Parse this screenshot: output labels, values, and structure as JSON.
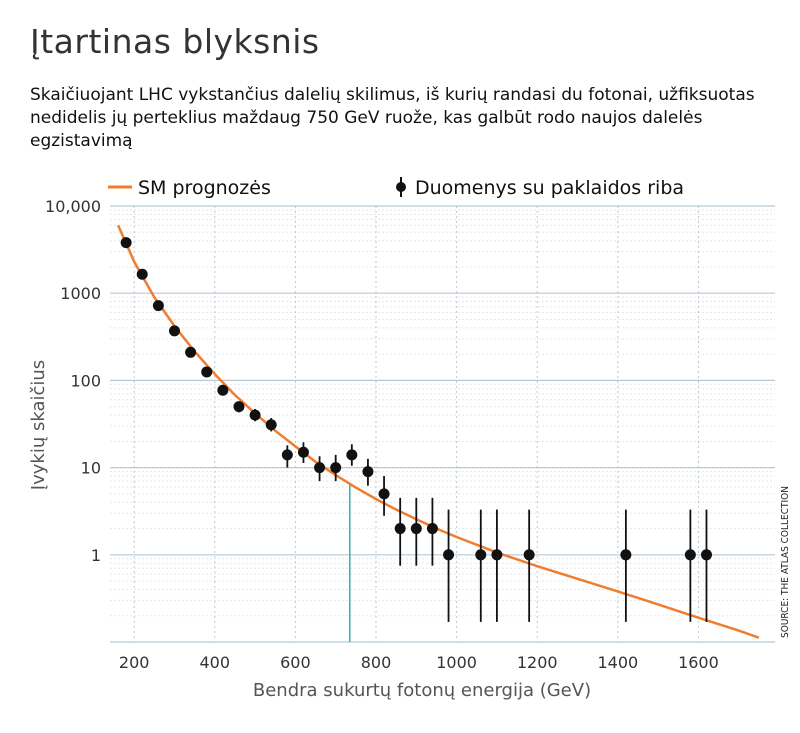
{
  "title": "Įtartinas blyksnis",
  "subtitle": "Skaičiuojant LHC vykstančius dalelių skilimus, iš kurių randasi du fotonai, užfiksuotas nedidelis jų perteklius maždaug 750 GeV ruože, kas galbūt rodo naujos dalelės egzistavimą",
  "source": "SOURCE: THE ATLAS COLLECTION",
  "colors": {
    "prediction": "#f07d2e",
    "data": "#111111",
    "highlight": "#33b1a8",
    "major_grid": "#b8c9d6",
    "minor_grid": "#e3e8ec"
  },
  "chart_data": {
    "type": "scatter",
    "xlabel": "Bendra sukurtų fotonų energija (GeV)",
    "ylabel": "Įvykių skaičius",
    "x_scale": "linear",
    "y_scale": "log",
    "xlim": [
      140,
      1790
    ],
    "ylim": [
      0.1,
      10000
    ],
    "x_ticks": [
      200,
      400,
      600,
      800,
      1000,
      1200,
      1400,
      1600
    ],
    "x_tick_labels": [
      "200",
      "400",
      "600",
      "800",
      "1000",
      "1200",
      "1400",
      "1600"
    ],
    "y_ticks": [
      1,
      10,
      100,
      1000,
      10000
    ],
    "y_tick_labels": [
      "1",
      "10",
      "100",
      "1000",
      "10,000"
    ],
    "grid": true,
    "legend_position": "top",
    "highlight_x": 735,
    "series": [
      {
        "name": "SM prognozės",
        "kind": "line",
        "x": [
          160,
          200,
          250,
          300,
          350,
          400,
          450,
          500,
          550,
          600,
          650,
          700,
          750,
          800,
          850,
          900,
          950,
          1000,
          1100,
          1200,
          1300,
          1400,
          1500,
          1600,
          1700,
          1750
        ],
        "y": [
          6000,
          2300,
          900,
          420,
          215,
          118,
          68,
          42,
          26.5,
          17.5,
          11.7,
          8.2,
          5.9,
          4.35,
          3.3,
          2.55,
          2.0,
          1.6,
          1.06,
          0.74,
          0.53,
          0.38,
          0.27,
          0.19,
          0.135,
          0.112
        ]
      },
      {
        "name": "Duomenys su paklaidos riba",
        "kind": "errorbar",
        "points": [
          {
            "x": 180,
            "y": 3800,
            "lo": 3650,
            "hi": 3950
          },
          {
            "x": 220,
            "y": 1650,
            "lo": 1570,
            "hi": 1730
          },
          {
            "x": 260,
            "y": 720,
            "lo": 680,
            "hi": 760
          },
          {
            "x": 300,
            "y": 370,
            "lo": 345,
            "hi": 395
          },
          {
            "x": 340,
            "y": 210,
            "lo": 195,
            "hi": 225
          },
          {
            "x": 380,
            "y": 125,
            "lo": 113,
            "hi": 137
          },
          {
            "x": 420,
            "y": 77,
            "lo": 69,
            "hi": 86
          },
          {
            "x": 460,
            "y": 50,
            "lo": 43,
            "hi": 57
          },
          {
            "x": 500,
            "y": 40,
            "lo": 34,
            "hi": 47
          },
          {
            "x": 540,
            "y": 31,
            "lo": 26,
            "hi": 37
          },
          {
            "x": 580,
            "y": 14,
            "lo": 10,
            "hi": 18
          },
          {
            "x": 620,
            "y": 15,
            "lo": 11.3,
            "hi": 19.5
          },
          {
            "x": 660,
            "y": 10,
            "lo": 7,
            "hi": 13.5
          },
          {
            "x": 700,
            "y": 10,
            "lo": 7,
            "hi": 14
          },
          {
            "x": 740,
            "y": 14,
            "lo": 10.5,
            "hi": 18.5
          },
          {
            "x": 780,
            "y": 9,
            "lo": 6.2,
            "hi": 12.6
          },
          {
            "x": 820,
            "y": 5,
            "lo": 2.8,
            "hi": 8
          },
          {
            "x": 860,
            "y": 2,
            "lo": 0.75,
            "hi": 4.5
          },
          {
            "x": 900,
            "y": 2,
            "lo": 0.75,
            "hi": 4.5
          },
          {
            "x": 940,
            "y": 2,
            "lo": 0.75,
            "hi": 4.5
          },
          {
            "x": 980,
            "y": 1,
            "lo": 0.17,
            "hi": 3.3
          },
          {
            "x": 1060,
            "y": 1,
            "lo": 0.17,
            "hi": 3.3
          },
          {
            "x": 1100,
            "y": 1,
            "lo": 0.17,
            "hi": 3.3
          },
          {
            "x": 1180,
            "y": 1,
            "lo": 0.17,
            "hi": 3.3
          },
          {
            "x": 1420,
            "y": 1,
            "lo": 0.17,
            "hi": 3.3
          },
          {
            "x": 1580,
            "y": 1,
            "lo": 0.17,
            "hi": 3.3
          },
          {
            "x": 1620,
            "y": 1,
            "lo": 0.17,
            "hi": 3.3
          }
        ]
      }
    ]
  }
}
